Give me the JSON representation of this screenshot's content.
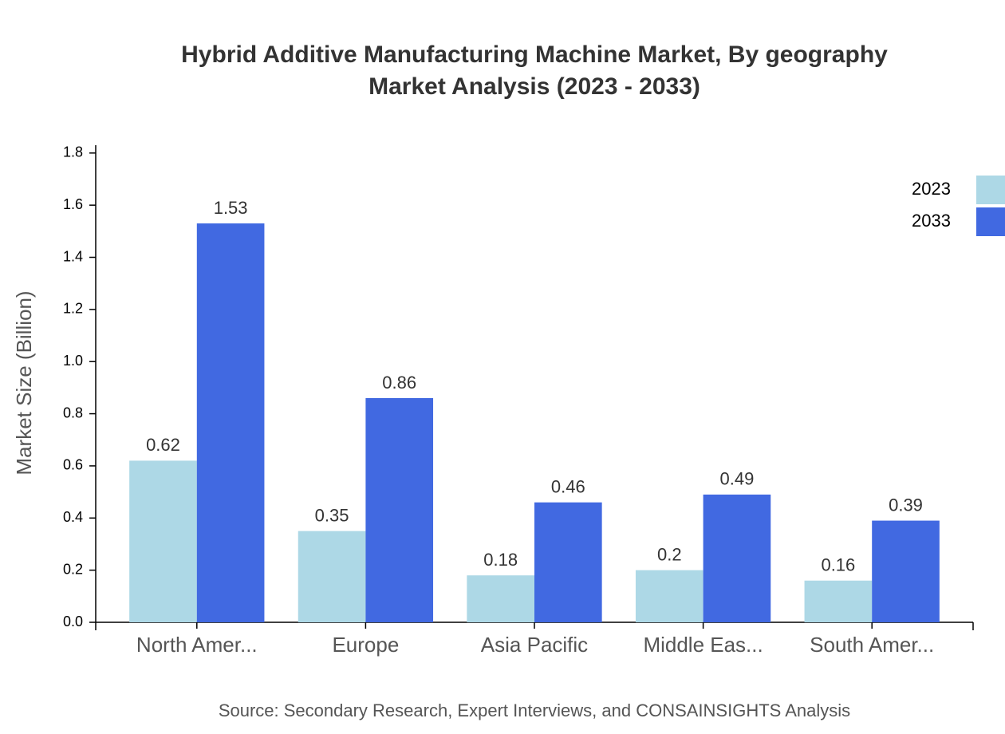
{
  "chart_data": {
    "type": "bar",
    "title": "Hybrid Additive Manufacturing Machine Market, By geography",
    "subtitle": "Market Analysis (2023 - 2033)",
    "y_label": "Market Size (Billion)",
    "source": "Source: Secondary Research, Expert Interviews, and CONSAINSIGHTS Analysis",
    "categories": [
      "North Amer...",
      "Europe",
      "Asia Pacific",
      "Middle Eas...",
      "South Amer..."
    ],
    "series": [
      {
        "name": "2023",
        "color": "#add8e6",
        "values": [
          0.62,
          0.35,
          0.18,
          0.2,
          0.16
        ]
      },
      {
        "name": "2033",
        "color": "#4169e1",
        "values": [
          1.53,
          0.86,
          0.46,
          0.49,
          0.39
        ]
      }
    ],
    "ylim": [
      0,
      1.83
    ],
    "yticks": [
      {
        "value": 0,
        "label": "0.0"
      },
      0.2,
      0.4,
      0.6,
      0.8,
      {
        "value": 1,
        "label": "1.0"
      },
      1.2,
      1.4,
      1.6,
      1.8
    ],
    "legend": "top-right",
    "grid": false
  }
}
